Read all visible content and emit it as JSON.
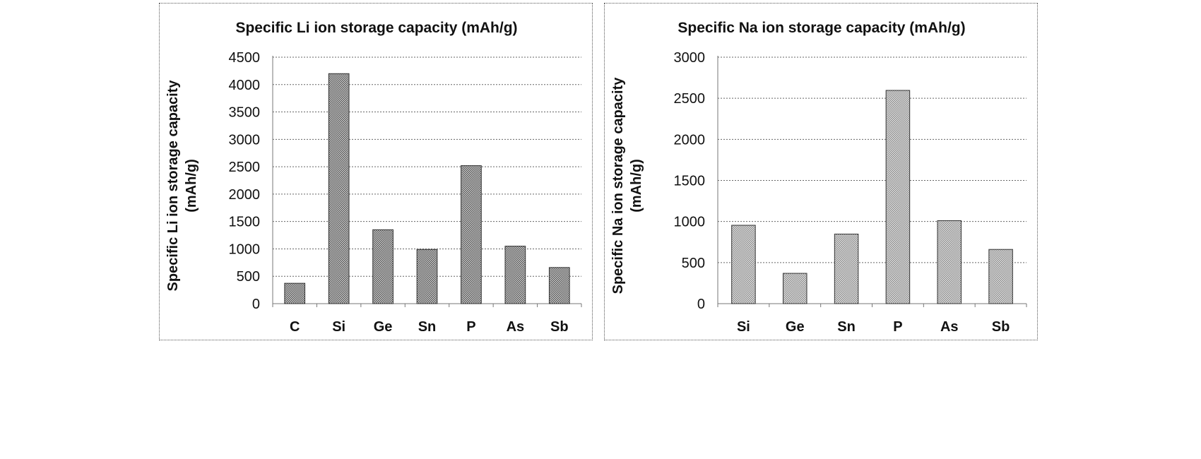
{
  "chart_data": [
    {
      "type": "bar",
      "title": "Specific Li ion storage capacity (mAh/g)",
      "ylabel_lines": [
        "Specific Li ion storage capacity",
        "(mAh/g)"
      ],
      "xlabel": "",
      "categories": [
        "C",
        "Si",
        "Ge",
        "Sn",
        "P",
        "As",
        "Sb"
      ],
      "values": [
        372,
        4200,
        1350,
        990,
        2520,
        1050,
        660
      ],
      "ylim": [
        0,
        4500
      ],
      "yticks": [
        0,
        500,
        1000,
        1500,
        2000,
        2500,
        3000,
        3500,
        4000,
        4500
      ],
      "grid": true,
      "bar_color": "#7a7a7a"
    },
    {
      "type": "bar",
      "title": "Specific Na ion storage capacity (mAh/g)",
      "ylabel_lines": [
        "Specific Na ion storage capacity",
        "(mAh/g)"
      ],
      "xlabel": "",
      "categories": [
        "Si",
        "Ge",
        "Sn",
        "P",
        "As",
        "Sb"
      ],
      "values": [
        954,
        369,
        847,
        2596,
        1010,
        660
      ],
      "ylim": [
        0,
        3000
      ],
      "yticks": [
        0,
        500,
        1000,
        1500,
        2000,
        2500,
        3000
      ],
      "grid": true,
      "bar_color": "#b4b4b4"
    }
  ]
}
